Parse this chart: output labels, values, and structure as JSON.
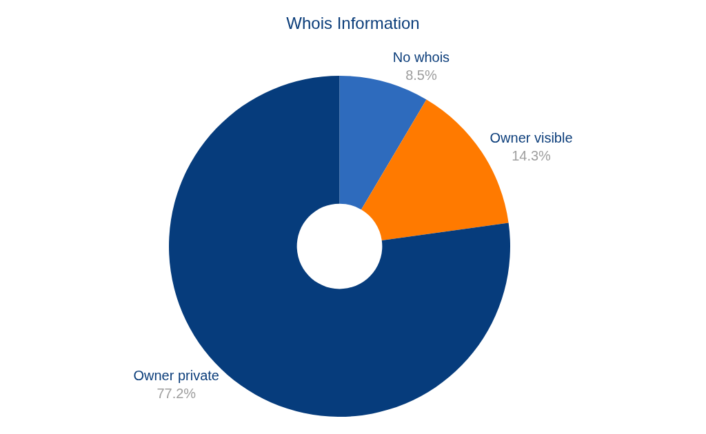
{
  "chart_data": {
    "type": "donut",
    "title": "Whois Information",
    "categories": [
      "No whois",
      "Owner visible",
      "Owner private"
    ],
    "values": [
      8.5,
      14.3,
      77.2
    ],
    "value_labels": [
      "8.5%",
      "14.3%",
      "77.2%"
    ],
    "colors": [
      "#2e6bbd",
      "#ff7a00",
      "#063c7c"
    ],
    "legend": false
  }
}
